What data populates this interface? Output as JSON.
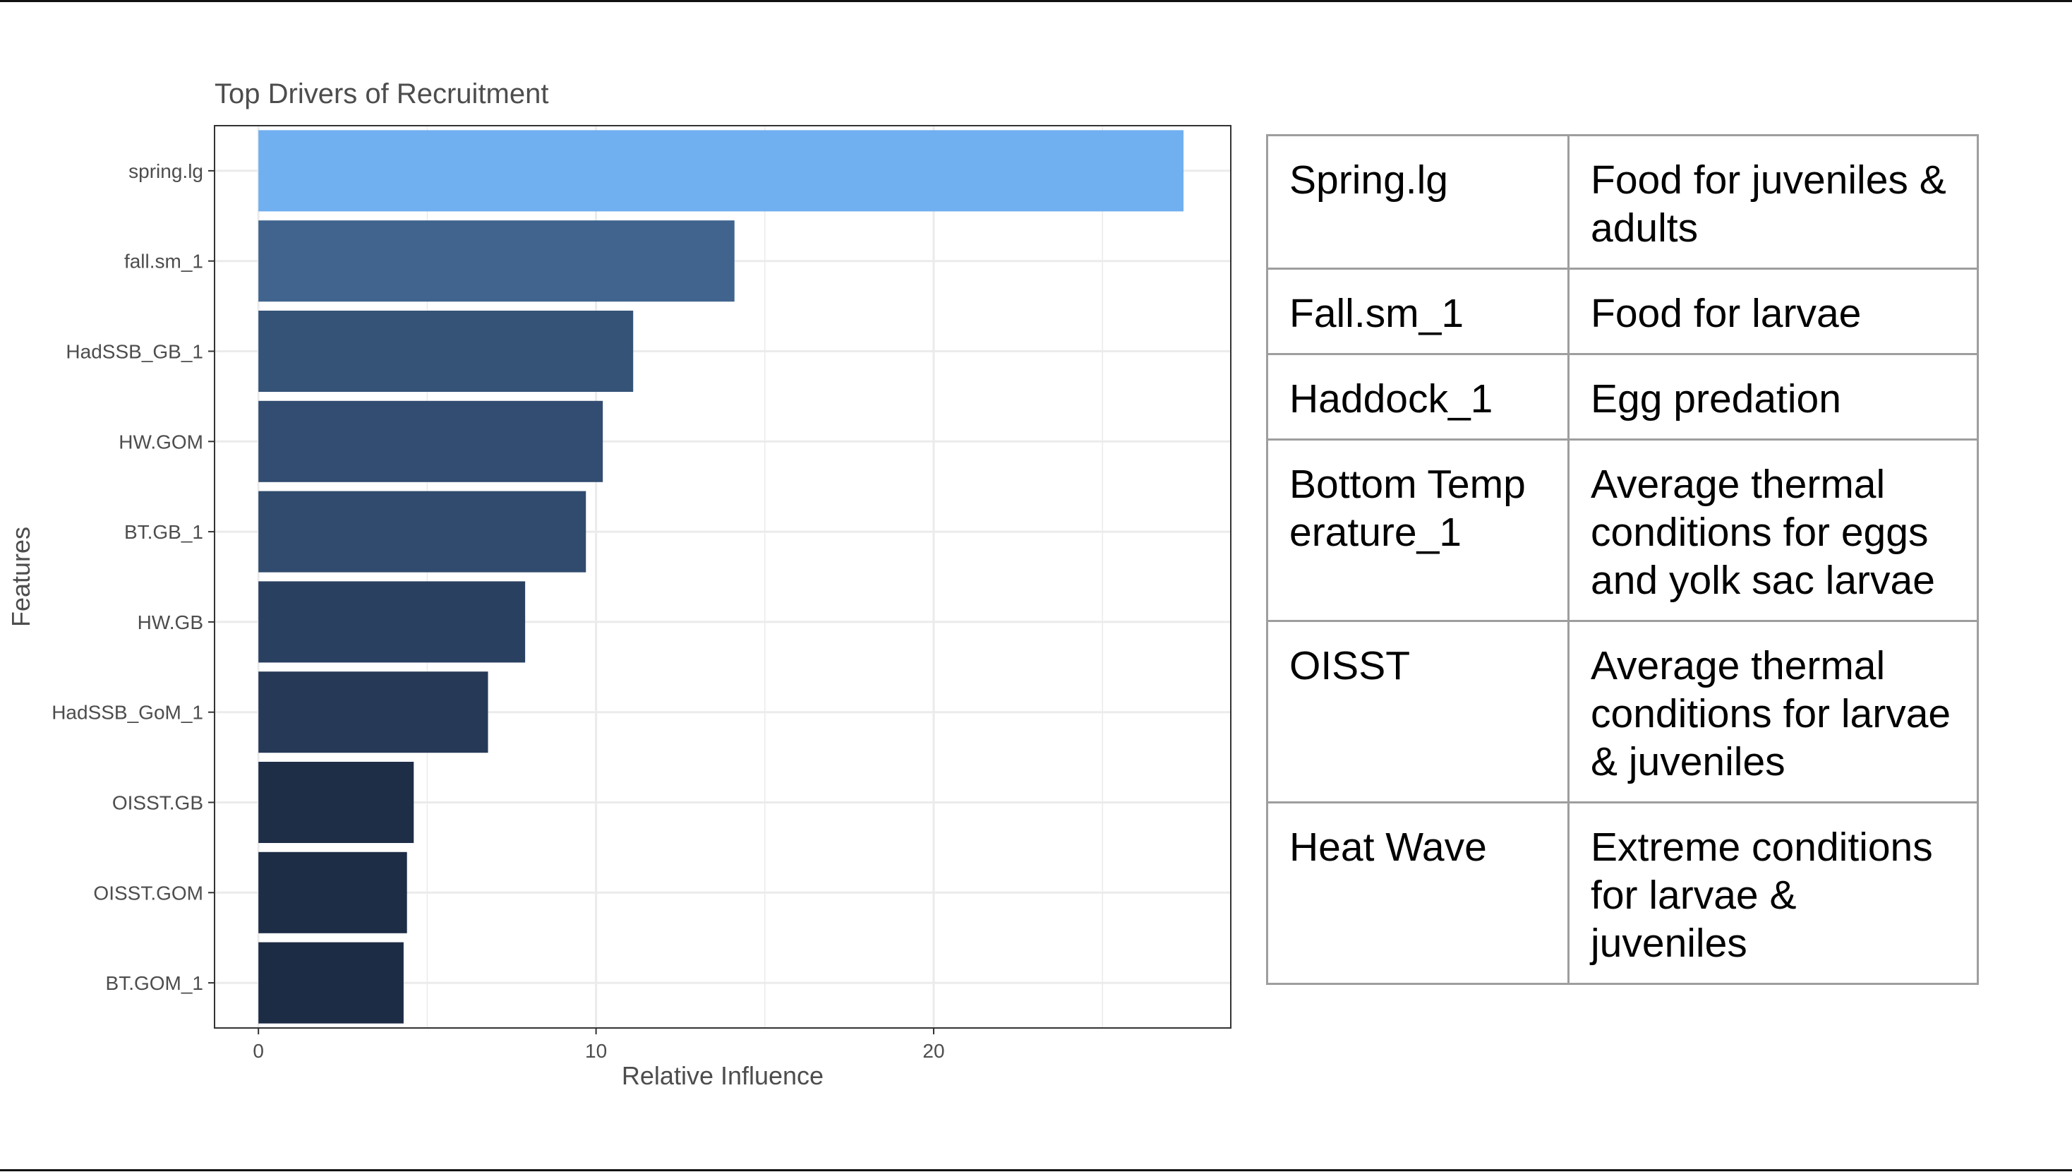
{
  "colors": {
    "bar_low": "#1d2c45",
    "bar_high": "#70aff0",
    "grid": "#ebebeb",
    "axis_border": "#333333",
    "table_border": "#9e9e9e"
  },
  "chart_data": {
    "type": "bar",
    "orientation": "horizontal",
    "title": "Top Drivers of Recruitment",
    "xlabel": "Relative Influence",
    "ylabel": "Features",
    "categories": [
      "spring.lg",
      "fall.sm_1",
      "HadSSB_GB_1",
      "HW.GOM",
      "BT.GB_1",
      "HW.GB",
      "HadSSB_GoM_1",
      "OISST.GB",
      "OISST.GOM",
      "BT.GOM_1"
    ],
    "values": [
      27.4,
      14.1,
      11.1,
      10.2,
      9.7,
      7.9,
      6.8,
      4.6,
      4.4,
      4.3
    ],
    "xlim": [
      -1.3,
      28.8
    ],
    "xticks": [
      "0",
      "10",
      "20"
    ],
    "grid": true,
    "legend": "none"
  },
  "table": {
    "rows": [
      {
        "feature": "Spring.lg",
        "description": "Food for juveniles & adults"
      },
      {
        "feature": "Fall.sm_1",
        "description": "Food for larvae"
      },
      {
        "feature": "Haddock_1",
        "description": "Egg predation"
      },
      {
        "feature": "Bottom Temperature_1",
        "description": "Average thermal conditions for eggs and yolk sac larvae"
      },
      {
        "feature": "OISST",
        "description": "Average thermal conditions for larvae & juveniles"
      },
      {
        "feature": "Heat Wave",
        "description": "Extreme conditions for larvae & juveniles"
      }
    ]
  }
}
